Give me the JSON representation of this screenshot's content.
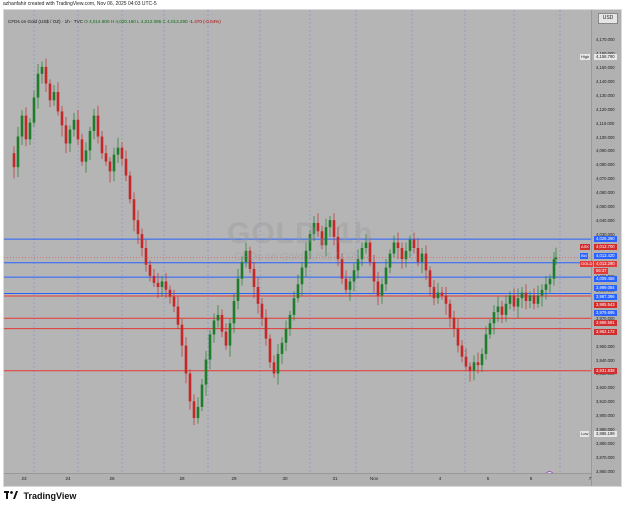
{
  "header": {
    "caption": "azhanfahir created with TradingView.com, Nov 06, 2025 04:03 UTC-5"
  },
  "currency": "USD",
  "legend": {
    "symbol": "CFDs on Gold (US$ / OZ) · 1h · TVC",
    "open": "O 4,014.800",
    "high": "H 4,020.180",
    "low": "L 4,012.085",
    "close": "C 4,013.290",
    "change": "-1.470 (-0.04%)"
  },
  "watermark": {
    "symbol": "GOLD, 1h",
    "name": "CFDs on Gold (US$ / OZ)"
  },
  "y_ticks": [
    "4,170.000",
    "4,160.000",
    "4,150.000",
    "4,140.000",
    "4,130.000",
    "4,120.000",
    "4,110.000",
    "4,100.000",
    "4,090.000",
    "4,080.000",
    "4,070.000",
    "4,060.000",
    "4,050.000",
    "4,040.000",
    "4,030.000",
    "4,020.000",
    "4,010.000",
    "4,000.000",
    "3,990.000",
    "3,980.000",
    "3,970.000",
    "3,960.000",
    "3,950.000",
    "3,940.000",
    "3,930.000",
    "3,920.000",
    "3,910.000",
    "3,900.000",
    "3,890.000",
    "3,880.000",
    "3,870.000",
    "3,860.000"
  ],
  "x_ticks": [
    "23",
    "24",
    "26",
    "28",
    "29",
    "30",
    "31",
    "Nov",
    "4",
    "5",
    "6",
    "7"
  ],
  "price_tags": [
    {
      "label": "High",
      "value": "4,156.790",
      "bg": "#e6e6e6",
      "fg": "#222222"
    },
    {
      "label": "",
      "value": "4,026.390",
      "bg": "#2962ff",
      "fg": "#ffffff"
    },
    {
      "label": "ASK",
      "value": "4,013.700",
      "bg": "#d22d2d",
      "fg": "#ffffff"
    },
    {
      "label": "Bid",
      "value": "4,013.420",
      "bg": "#2962ff",
      "fg": "#ffffff"
    },
    {
      "label": "GOLD",
      "value": "4,013.290",
      "bg": "#e03b3b",
      "fg": "#ffffff"
    },
    {
      "label": "",
      "value": "56:37",
      "bg": "#e03b3b",
      "fg": "#ffffff"
    },
    {
      "label": "",
      "value": "4,009.456",
      "bg": "#2962ff",
      "fg": "#ffffff"
    },
    {
      "label": "",
      "value": "3,999.084",
      "bg": "#2962ff",
      "fg": "#ffffff"
    },
    {
      "label": "",
      "value": "3,987.396",
      "bg": "#2962ff",
      "fg": "#ffffff"
    },
    {
      "label": "",
      "value": "3,985.543",
      "bg": "#d22d2d",
      "fg": "#ffffff"
    },
    {
      "label": "",
      "value": "3,979.695",
      "bg": "#2962ff",
      "fg": "#ffffff"
    },
    {
      "label": "",
      "value": "3,969.591",
      "bg": "#d22d2d",
      "fg": "#ffffff"
    },
    {
      "label": "",
      "value": "3,962.172",
      "bg": "#d22d2d",
      "fg": "#ffffff"
    },
    {
      "label": "",
      "value": "3,931.938",
      "bg": "#d22d2d",
      "fg": "#ffffff"
    },
    {
      "label": "Low",
      "value": "3,886.199",
      "bg": "#e6e6e6",
      "fg": "#222222"
    }
  ],
  "levels": {
    "blue": [
      4026.39,
      4009.456,
      3999.084,
      3987.396
    ],
    "red": [
      3985.543,
      3969.591,
      3962.172,
      3931.938
    ]
  },
  "colors": {
    "up": "#1e7d2b",
    "down": "#c62828",
    "blue_line": "#2962ff",
    "red_line": "#e53935",
    "session": "#7f8fd0"
  },
  "chart_data": {
    "type": "candlestick",
    "symbol": "GOLD",
    "timeframe": "1h",
    "ylim": [
      3860,
      4175
    ],
    "high": 4156.79,
    "low": 3886.199,
    "last": 4013.29,
    "path_points": [
      [
        0,
        4088
      ],
      [
        4,
        4078
      ],
      [
        8,
        4100
      ],
      [
        12,
        4115
      ],
      [
        16,
        4098
      ],
      [
        20,
        4110
      ],
      [
        24,
        4128
      ],
      [
        28,
        4145
      ],
      [
        32,
        4150
      ],
      [
        36,
        4138
      ],
      [
        40,
        4126
      ],
      [
        44,
        4132
      ],
      [
        48,
        4118
      ],
      [
        52,
        4108
      ],
      [
        56,
        4095
      ],
      [
        60,
        4105
      ],
      [
        64,
        4112
      ],
      [
        68,
        4098
      ],
      [
        72,
        4082
      ],
      [
        76,
        4090
      ],
      [
        80,
        4104
      ],
      [
        84,
        4115
      ],
      [
        88,
        4100
      ],
      [
        92,
        4088
      ],
      [
        96,
        4082
      ],
      [
        100,
        4075
      ],
      [
        104,
        4087
      ],
      [
        108,
        4092
      ],
      [
        112,
        4084
      ],
      [
        116,
        4072
      ],
      [
        120,
        4055
      ],
      [
        124,
        4040
      ],
      [
        128,
        4030
      ],
      [
        132,
        4020
      ],
      [
        136,
        4008
      ],
      [
        140,
        4000
      ],
      [
        144,
        3995
      ],
      [
        148,
        3992
      ],
      [
        152,
        3996
      ],
      [
        156,
        3990
      ],
      [
        160,
        3985
      ],
      [
        164,
        3978
      ],
      [
        168,
        3965
      ],
      [
        172,
        3950
      ],
      [
        176,
        3930
      ],
      [
        180,
        3910
      ],
      [
        184,
        3898
      ],
      [
        188,
        3906
      ],
      [
        192,
        3922
      ],
      [
        196,
        3940
      ],
      [
        200,
        3958
      ],
      [
        204,
        3968
      ],
      [
        208,
        3972
      ],
      [
        212,
        3960
      ],
      [
        216,
        3950
      ],
      [
        220,
        3966
      ],
      [
        224,
        3982
      ],
      [
        228,
        3998
      ],
      [
        232,
        4010
      ],
      [
        236,
        4018
      ],
      [
        240,
        4005
      ],
      [
        244,
        3992
      ],
      [
        248,
        3980
      ],
      [
        252,
        3970
      ],
      [
        256,
        3955
      ],
      [
        260,
        3938
      ],
      [
        264,
        3930
      ],
      [
        268,
        3944
      ],
      [
        272,
        3952
      ],
      [
        276,
        3962
      ],
      [
        280,
        3972
      ],
      [
        284,
        3984
      ],
      [
        288,
        3994
      ],
      [
        292,
        4006
      ],
      [
        296,
        4018
      ],
      [
        300,
        4030
      ],
      [
        304,
        4038
      ],
      [
        308,
        4032
      ],
      [
        312,
        4022
      ],
      [
        316,
        4035
      ],
      [
        320,
        4040
      ],
      [
        324,
        4028
      ],
      [
        328,
        4012
      ],
      [
        332,
        3998
      ],
      [
        336,
        3990
      ],
      [
        340,
        3996
      ],
      [
        344,
        4004
      ],
      [
        348,
        4012
      ],
      [
        352,
        4020
      ],
      [
        356,
        4024
      ],
      [
        360,
        4010
      ],
      [
        364,
        3996
      ],
      [
        368,
        3986
      ],
      [
        372,
        3994
      ],
      [
        376,
        4006
      ],
      [
        380,
        4016
      ],
      [
        384,
        4024
      ],
      [
        388,
        4020
      ],
      [
        392,
        4012
      ],
      [
        396,
        4018
      ],
      [
        400,
        4026
      ],
      [
        404,
        4020
      ],
      [
        408,
        4010
      ],
      [
        412,
        4016
      ],
      [
        416,
        4004
      ],
      [
        420,
        3992
      ],
      [
        424,
        3984
      ],
      [
        428,
        3988
      ],
      [
        432,
        3986
      ],
      [
        436,
        3980
      ],
      [
        440,
        3970
      ],
      [
        444,
        3962
      ],
      [
        448,
        3950
      ],
      [
        452,
        3942
      ],
      [
        456,
        3935
      ],
      [
        460,
        3932
      ],
      [
        464,
        3938
      ],
      [
        468,
        3936
      ],
      [
        472,
        3944
      ],
      [
        476,
        3958
      ],
      [
        480,
        3966
      ],
      [
        484,
        3974
      ],
      [
        488,
        3978
      ],
      [
        492,
        3972
      ],
      [
        496,
        3980
      ],
      [
        500,
        3986
      ],
      [
        504,
        3978
      ],
      [
        508,
        3984
      ],
      [
        512,
        3988
      ],
      [
        516,
        3982
      ],
      [
        520,
        3986
      ],
      [
        524,
        3980
      ],
      [
        528,
        3986
      ],
      [
        532,
        3990
      ],
      [
        536,
        3994
      ],
      [
        540,
        3998
      ],
      [
        544,
        4012
      ],
      [
        546,
        4013.29
      ]
    ]
  },
  "footer": {
    "brand": "TradingView"
  }
}
